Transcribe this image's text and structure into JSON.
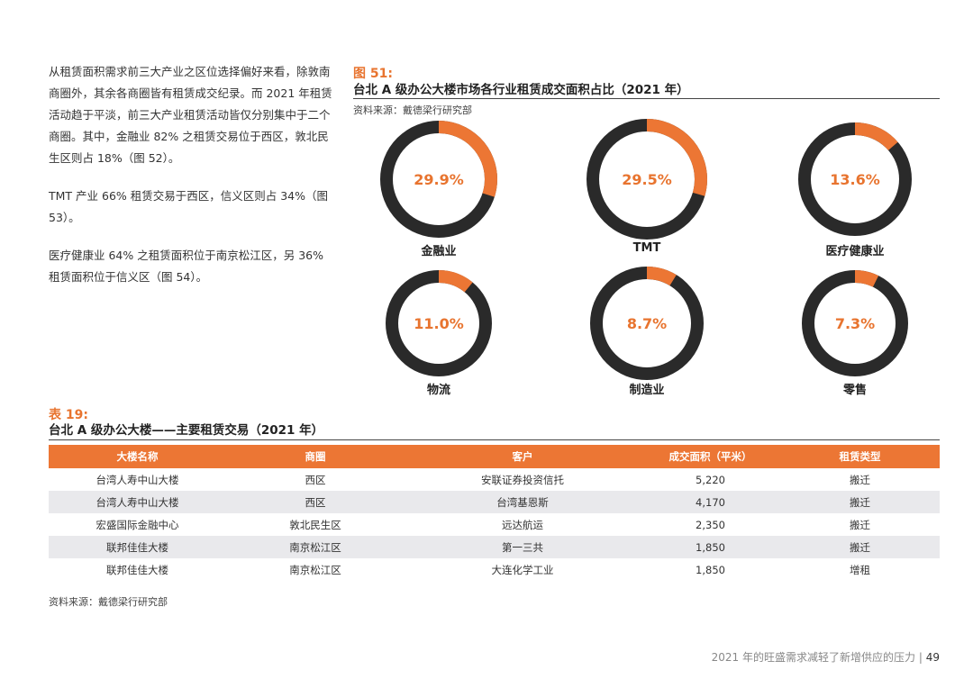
{
  "body_text": [
    "从租赁面积需求前三大产业之区位选择偏好来看，除敦南商圈外，其余各商圈皆有租赁成交纪录。而 2021 年租赁活动趋于平淡，前三大产业租赁活动皆仅分别集中于二个商圈。其中，金融业 82% 之租赁交易位于西区，敦北民生区则占 18%（图 52）。",
    "TMT 产业 66% 租赁交易于西区，信义区则占 34%（图 53）。",
    "医疗健康业 64% 之租赁面积位于南京松江区，另 36% 租赁面积位于信义区（图 54）。"
  ],
  "figure": {
    "label": "图 51:",
    "title": "台北 A 级办公大楼市场各行业租赁成交面积占比（2021 年）",
    "source": "资料来源：戴德梁行研究部"
  },
  "chart_data": {
    "type": "pie",
    "variant": "donut",
    "unit": "%",
    "categories": [
      "金融业",
      "TMT",
      "医疗健康业",
      "物流",
      "制造业",
      "零售"
    ],
    "values": [
      29.9,
      29.5,
      13.6,
      11.0,
      8.7,
      7.3
    ],
    "labels": [
      "29.9%",
      "29.5%",
      "13.6%",
      "11.0%",
      "8.7%",
      "7.3%"
    ],
    "title": "台北 A 级办公大楼市场各行业租赁成交面积占比（2021 年）",
    "colors": {
      "share": "#ec7634",
      "remainder": "#2a2a2a",
      "label": "#e8742f"
    }
  },
  "table": {
    "label": "表 19:",
    "title": "台北 A 级办公大楼——主要租赁交易（2021 年）",
    "headers": [
      "大楼名称",
      "商圈",
      "客户",
      "成交面积（平米）",
      "租赁类型"
    ],
    "rows": [
      [
        "台湾人寿中山大楼",
        "西区",
        "安联证券投资信托",
        "5,220",
        "搬迁"
      ],
      [
        "台湾人寿中山大楼",
        "西区",
        "台湾基恩斯",
        "4,170",
        "搬迁"
      ],
      [
        "宏盛国际金融中心",
        "敦北民生区",
        "远达航运",
        "2,350",
        "搬迁"
      ],
      [
        "联邦佳佳大楼",
        "南京松江区",
        "第一三共",
        "1,850",
        "搬迁"
      ],
      [
        "联邦佳佳大楼",
        "南京松江区",
        "大连化学工业",
        "1,850",
        "增租"
      ]
    ],
    "source": "资料来源：戴德梁行研究部"
  },
  "footer": {
    "text": "2021 年的旺盛需求减轻了新增供应的压力",
    "separator": "|",
    "page": "49"
  }
}
